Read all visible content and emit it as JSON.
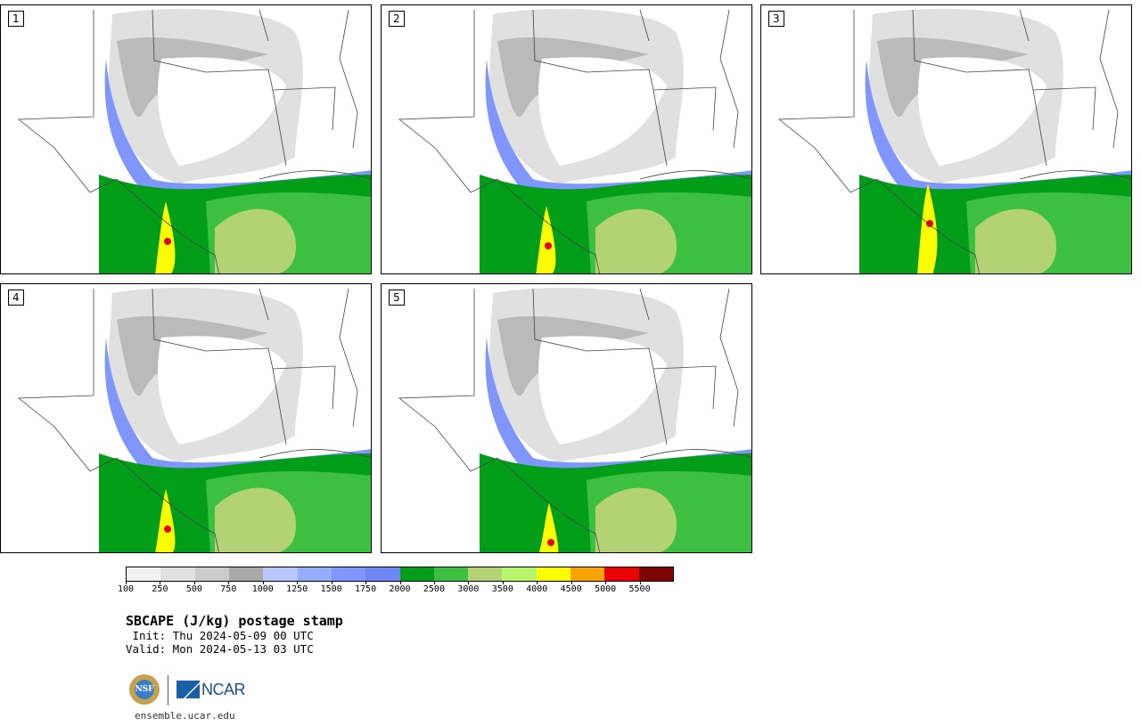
{
  "title": "SBCAPE (J/kg) postage stamp",
  "init": " Init: Thu 2024-05-09 00 UTC",
  "valid": "Valid: Mon 2024-05-13 03 UTC",
  "website": "ensemble.ucar.edu",
  "logos": {
    "nsf": "NSF",
    "ncar": "NCAR"
  },
  "panels": [
    {
      "label": "1"
    },
    {
      "label": "2"
    },
    {
      "label": "3"
    },
    {
      "label": "4"
    },
    {
      "label": "5"
    }
  ],
  "colorbar": {
    "colors": [
      "#f2f2f2",
      "#e0e0e0",
      "#cccccc",
      "#a9a9a9",
      "#b7c6ff",
      "#93adff",
      "#7f96ff",
      "#6f86f7",
      "#029d19",
      "#3dbf41",
      "#b2d273",
      "#b6f56a",
      "#fcfc05",
      "#f9a404",
      "#e90404",
      "#7f0505"
    ],
    "ticks": [
      "100",
      "250",
      "500",
      "750",
      "1000",
      "1250",
      "1500",
      "1750",
      "2000",
      "2500",
      "3000",
      "3500",
      "4000",
      "4500",
      "5000",
      "5500"
    ]
  }
}
